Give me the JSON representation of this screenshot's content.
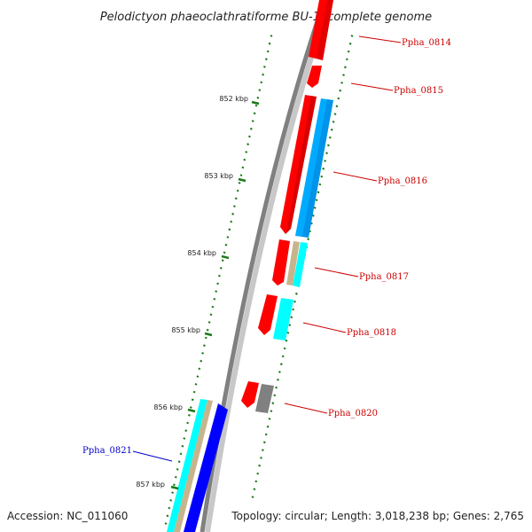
{
  "title": "Pelodictyon phaeoclathratiforme BU-1, complete genome",
  "footer": {
    "accession": "Accession: NC_011060",
    "summary": "Topology: circular; Length: 3,018,238 bp; Genes: 2,765"
  },
  "colors": {
    "backbone": "#808080",
    "backbone_light": "#c8c8c8",
    "tick": "#1a7a1a",
    "label_red": "#cc0000",
    "label_blue": "#0000cc",
    "gene_red": "#ff0000",
    "gene_blue": "#00aaff",
    "gene_cyan": "#00ffff",
    "gene_tan": "#c8b48c",
    "gene_gray": "#808080",
    "gene_darkblue": "#0000ff"
  },
  "kbp_ticks": [
    "852 kbp",
    "853 kbp",
    "854 kbp",
    "855 kbp",
    "856 kbp",
    "857 kbp"
  ],
  "gene_labels": [
    {
      "name": "Ppha_0814",
      "color": "red"
    },
    {
      "name": "Ppha_0815",
      "color": "red"
    },
    {
      "name": "Ppha_0816",
      "color": "red"
    },
    {
      "name": "Ppha_0817",
      "color": "red"
    },
    {
      "name": "Ppha_0818",
      "color": "red"
    },
    {
      "name": "Ppha_0820",
      "color": "red"
    },
    {
      "name": "Ppha_0821",
      "color": "blue"
    }
  ]
}
